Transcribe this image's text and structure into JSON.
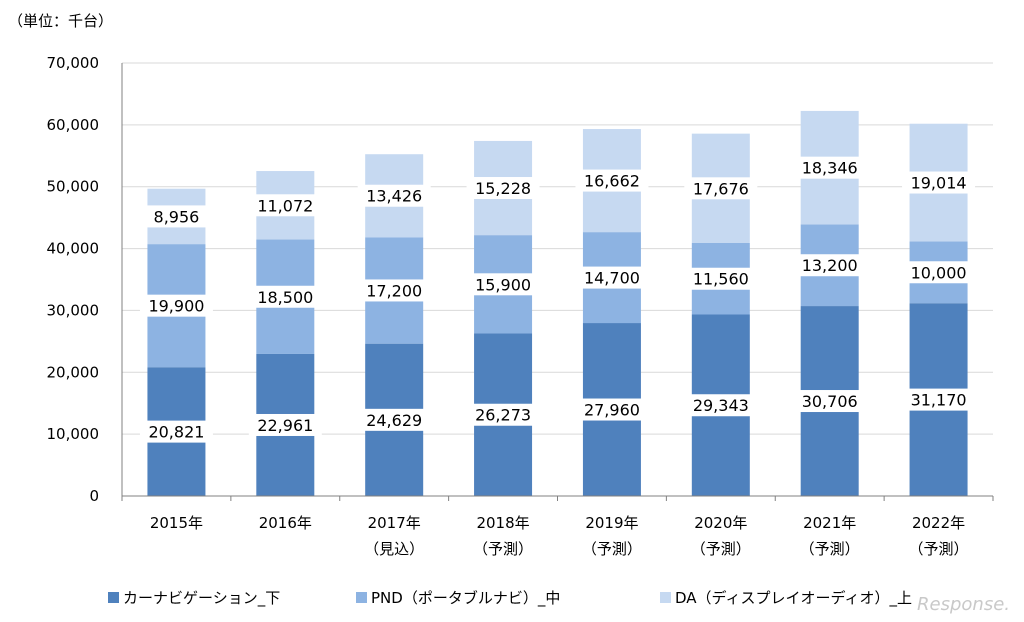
{
  "unit_label": "（単位：千台）",
  "watermark": "Response.",
  "colors": {
    "car_navi": "#4f81bd",
    "pnd": "#8db3e2",
    "da": "#c6d9f1",
    "grid": "#d9d9d9",
    "axis": "#808080"
  },
  "chart_data": {
    "type": "bar",
    "stacked": true,
    "title": "",
    "ylim": [
      0,
      70000
    ],
    "yticks": [
      "0",
      "10,000",
      "20,000",
      "30,000",
      "40,000",
      "50,000",
      "60,000",
      "70,000"
    ],
    "ytick_values": [
      0,
      10000,
      20000,
      30000,
      40000,
      50000,
      60000,
      70000
    ],
    "grid": true,
    "legend_position": "bottom",
    "categories": [
      [
        "2015年"
      ],
      [
        "2016年"
      ],
      [
        "2017年",
        "（見込）"
      ],
      [
        "2018年",
        "（予測）"
      ],
      [
        "2019年",
        "（予測）"
      ],
      [
        "2020年",
        "（予測）"
      ],
      [
        "2021年",
        "（予測）"
      ],
      [
        "2022年",
        "（予測）"
      ]
    ],
    "series": [
      {
        "name": "カーナビゲーション_下",
        "color_key": "car_navi",
        "values": [
          20821,
          22961,
          24629,
          26273,
          27960,
          29343,
          30706,
          31170
        ],
        "labels": [
          "20,821",
          "22,961",
          "24,629",
          "26,273",
          "27,960",
          "29,343",
          "30,706",
          "31,170"
        ]
      },
      {
        "name": "PND（ポータブルナビ）_中",
        "color_key": "pnd",
        "values": [
          19900,
          18500,
          17200,
          15900,
          14700,
          11560,
          13200,
          10000
        ],
        "labels": [
          "19,900",
          "18,500",
          "17,200",
          "15,900",
          "14,700",
          "11,560",
          "13,200",
          "10,000"
        ]
      },
      {
        "name": "DA（ディスプレイオーディオ）_上",
        "color_key": "da",
        "values": [
          8956,
          11072,
          13426,
          15228,
          16662,
          17676,
          18346,
          19014
        ],
        "labels": [
          "8,956",
          "11,072",
          "13,426",
          "15,228",
          "16,662",
          "17,676",
          "18,346",
          "19,014"
        ]
      }
    ]
  }
}
